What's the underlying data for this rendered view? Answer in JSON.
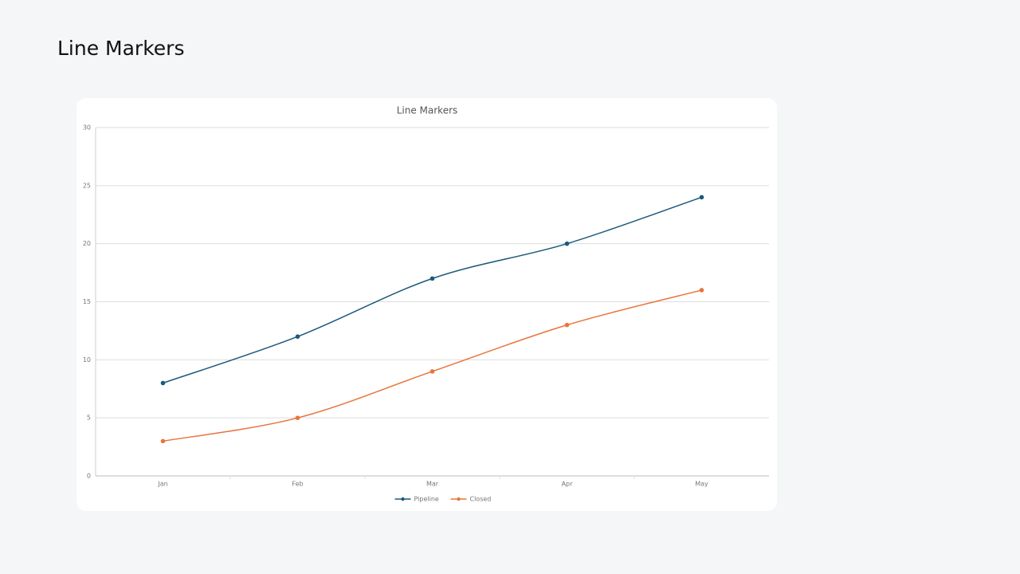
{
  "page": {
    "title": "Line Markers"
  },
  "chart_data": {
    "type": "line",
    "title": "Line Markers",
    "categories": [
      "Jan",
      "Feb",
      "Mar",
      "Apr",
      "May"
    ],
    "series": [
      {
        "name": "Pipeline",
        "color": "#1b5a7a",
        "values": [
          8,
          12,
          17,
          20,
          24
        ]
      },
      {
        "name": "Closed",
        "color": "#e8743b",
        "values": [
          3,
          5,
          9,
          13,
          16
        ]
      }
    ],
    "ylim": [
      0,
      30
    ],
    "yticks": [
      0,
      5,
      10,
      15,
      20,
      25,
      30
    ],
    "grid": true,
    "smooth": true,
    "markers": true,
    "legend": "bottom"
  }
}
